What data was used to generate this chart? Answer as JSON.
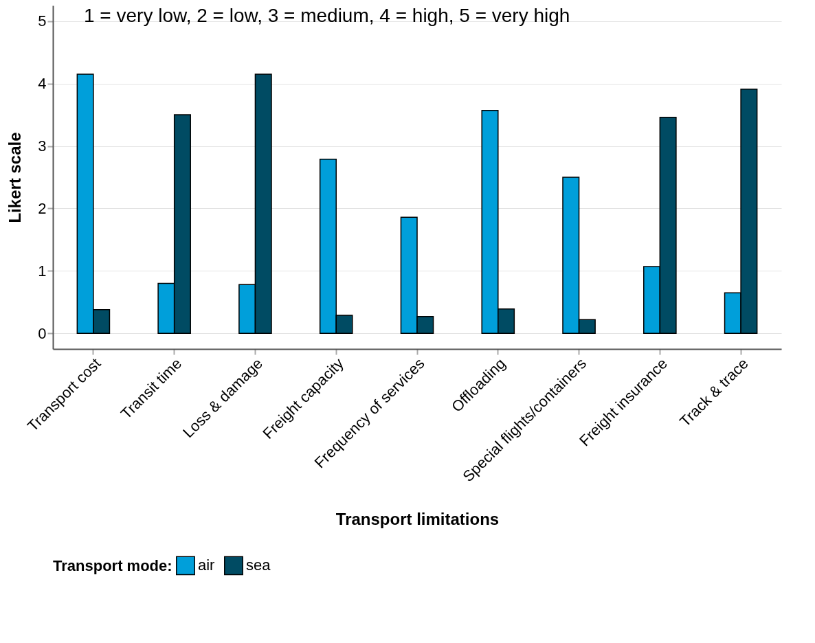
{
  "chart_data": {
    "type": "bar",
    "xlabel": "Transport limitations",
    "ylabel": "Likert scale",
    "legend_title": "Transport mode:",
    "annotations": [
      "1 = very low, 2 = low, 3 = medium, 4 = high, 5 = very high"
    ],
    "categories": [
      "Transport cost",
      "Transit time",
      "Loss & damage",
      "Freight capacity",
      "Frequency of services",
      "Offloading",
      "Special flights/containers",
      "Freight insurance",
      "Track & trace"
    ],
    "series": [
      {
        "name": "air",
        "color": "#009fda",
        "values": [
          4.15,
          0.8,
          0.78,
          2.79,
          1.86,
          3.57,
          2.5,
          1.07,
          0.65
        ]
      },
      {
        "name": "sea",
        "color": "#004b63",
        "values": [
          0.38,
          3.5,
          4.15,
          0.29,
          0.27,
          0.39,
          0.22,
          3.46,
          3.91
        ]
      }
    ],
    "ylim": [
      -0.25,
      5.25
    ],
    "yticks": [
      0,
      1,
      2,
      3,
      4,
      5
    ],
    "grid": "y",
    "legend": "bottom"
  }
}
